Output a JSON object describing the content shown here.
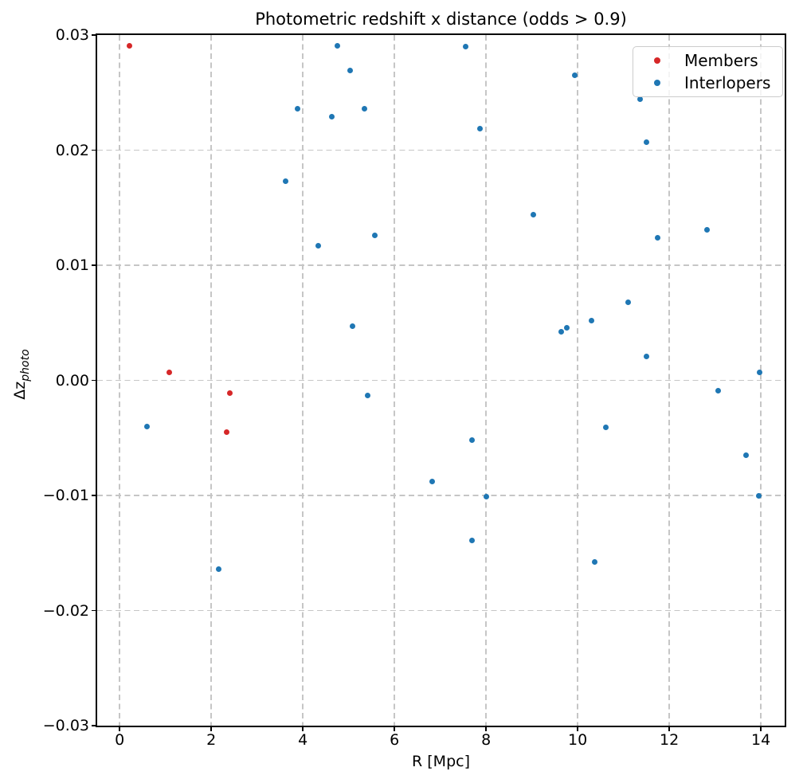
{
  "title": "Photometric redshift x distance (odds > 0.9)",
  "xlabel": "R [Mpc]",
  "ylabel_main": "Δz",
  "ylabel_sub": "photo",
  "legend": {
    "items": [
      {
        "label": "Members",
        "color": "#d62728"
      },
      {
        "label": "Interlopers",
        "color": "#1f77b4"
      }
    ]
  },
  "chart_data": {
    "type": "scatter",
    "title": "Photometric redshift x distance (odds > 0.9)",
    "xlabel": "R [Mpc]",
    "ylabel": "Δz_photo",
    "xlim": [
      -0.49,
      14.52
    ],
    "ylim": [
      -0.03,
      0.03
    ],
    "xticks": [
      0,
      2,
      4,
      6,
      8,
      10,
      12,
      14
    ],
    "xtick_labels": [
      "0",
      "2",
      "4",
      "6",
      "8",
      "10",
      "12",
      "14"
    ],
    "yticks": [
      0.03,
      0.02,
      0.01,
      0,
      -0.01,
      -0.02,
      -0.03
    ],
    "ytick_labels": [
      "0.03",
      "0.02",
      "0.01",
      "0.00",
      "−0.01",
      "−0.02",
      "−0.03"
    ],
    "grid": true,
    "grid_color": "#c6c6c6",
    "legend_position": "upper right",
    "series": [
      {
        "name": "Members",
        "color": "#d62728",
        "points": [
          [
            0.21,
            0.0291
          ],
          [
            1.08,
            0.0007
          ],
          [
            2.4,
            -0.0011
          ],
          [
            2.33,
            -0.0045
          ]
        ]
      },
      {
        "name": "Interlopers",
        "color": "#1f77b4",
        "points": [
          [
            4.75,
            0.0291
          ],
          [
            7.55,
            0.029
          ],
          [
            5.03,
            0.0269
          ],
          [
            9.93,
            0.0265
          ],
          [
            11.36,
            0.0244
          ],
          [
            3.88,
            0.0236
          ],
          [
            5.34,
            0.0236
          ],
          [
            4.64,
            0.0229
          ],
          [
            7.86,
            0.0219
          ],
          [
            11.51,
            0.0207
          ],
          [
            3.63,
            0.0173
          ],
          [
            9.04,
            0.0144
          ],
          [
            12.83,
            0.0131
          ],
          [
            5.58,
            0.0126
          ],
          [
            11.74,
            0.0124
          ],
          [
            4.33,
            0.0117
          ],
          [
            11.1,
            0.0068
          ],
          [
            10.3,
            0.0052
          ],
          [
            5.08,
            0.0047
          ],
          [
            9.76,
            0.0046
          ],
          [
            9.65,
            0.0042
          ],
          [
            11.51,
            0.0021
          ],
          [
            13.97,
            0.0007
          ],
          [
            13.06,
            -0.0009
          ],
          [
            5.41,
            -0.0013
          ],
          [
            0.59,
            -0.004
          ],
          [
            10.61,
            -0.0041
          ],
          [
            7.7,
            -0.0052
          ],
          [
            13.67,
            -0.0065
          ],
          [
            6.83,
            -0.0088
          ],
          [
            13.95,
            -0.01
          ],
          [
            8.0,
            -0.0101
          ],
          [
            7.7,
            -0.0139
          ],
          [
            10.37,
            -0.0158
          ],
          [
            2.16,
            -0.0164
          ]
        ]
      }
    ]
  }
}
